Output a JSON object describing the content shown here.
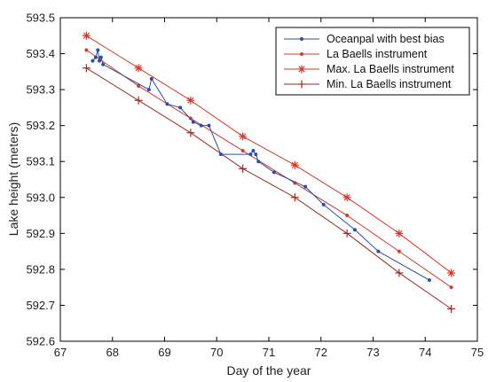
{
  "chart_data": {
    "type": "line",
    "title": "",
    "xlabel": "Day of the year",
    "ylabel": "Lake height (meters)",
    "xlim": [
      67,
      75
    ],
    "ylim": [
      592.6,
      593.5
    ],
    "x_ticks": [
      67,
      68,
      69,
      70,
      71,
      72,
      73,
      74,
      75
    ],
    "x_tick_labels": [
      "67",
      "68",
      "69",
      "70",
      "71",
      "72",
      "73",
      "74",
      "75"
    ],
    "y_ticks": [
      592.6,
      592.7,
      592.8,
      592.9,
      593.0,
      593.1,
      593.2,
      593.3,
      593.4,
      593.5
    ],
    "y_tick_labels": [
      "592.6",
      "592.7",
      "592.8",
      "592.9",
      "593.0",
      "593.1",
      "593.2",
      "593.3",
      "593.4",
      "593.5"
    ],
    "grid": false,
    "legend_position": "top-right",
    "series": [
      {
        "name": "Oceanpal with best bias",
        "color": "#2a4ea6",
        "marker": "dot",
        "x": [
          67.62,
          67.68,
          67.72,
          67.75,
          67.78,
          67.82,
          68.7,
          68.75,
          69.05,
          69.3,
          69.55,
          69.7,
          69.85,
          70.08,
          70.65,
          70.7,
          70.75,
          70.8,
          71.1,
          71.7,
          72.05,
          72.65,
          73.1,
          74.08
        ],
        "y": [
          593.38,
          593.39,
          593.41,
          593.38,
          593.39,
          593.37,
          593.3,
          593.33,
          593.26,
          593.25,
          593.21,
          593.2,
          593.2,
          593.12,
          593.12,
          593.13,
          593.12,
          593.1,
          593.07,
          593.03,
          592.98,
          592.91,
          592.85,
          592.77
        ]
      },
      {
        "name": "La Baells instrument",
        "color": "#d43a2c",
        "marker": "dot",
        "x": [
          67.5,
          68.5,
          69.5,
          70.5,
          71.5,
          72.5,
          73.5,
          74.5
        ],
        "y": [
          593.41,
          593.31,
          593.22,
          593.13,
          593.04,
          592.95,
          592.85,
          592.75
        ]
      },
      {
        "name": "Max. La Baells instrument",
        "color": "#d43a2c",
        "marker": "asterisk",
        "x": [
          67.5,
          68.5,
          69.5,
          70.5,
          71.5,
          72.5,
          73.5,
          74.5
        ],
        "y": [
          593.45,
          593.36,
          593.27,
          593.17,
          593.09,
          593.0,
          592.9,
          592.79
        ]
      },
      {
        "name": "Min. La Baells instrument",
        "color": "#9e2a22",
        "marker": "plus",
        "x": [
          67.5,
          68.5,
          69.5,
          70.5,
          71.5,
          72.5,
          73.5,
          74.5
        ],
        "y": [
          593.36,
          593.27,
          593.18,
          593.08,
          593.0,
          592.9,
          592.79,
          592.69
        ]
      }
    ]
  }
}
